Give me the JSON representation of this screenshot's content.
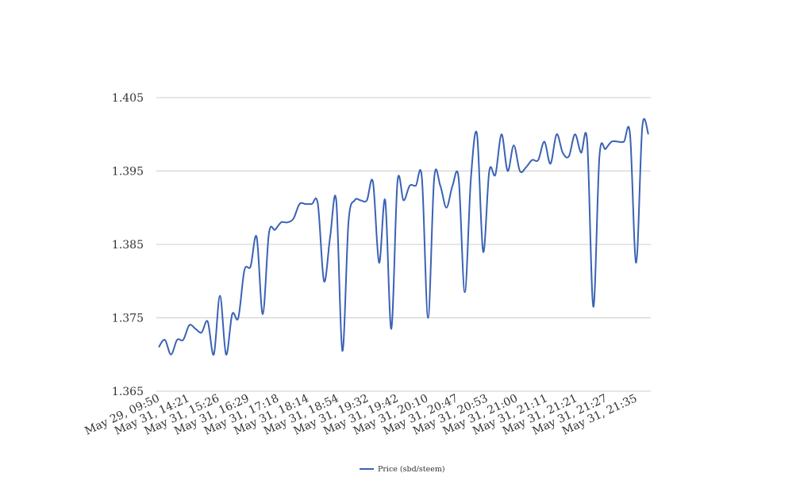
{
  "chart_data": {
    "type": "line",
    "title": "",
    "xlabel": "",
    "ylabel": "",
    "ylim": [
      1.365,
      1.405
    ],
    "yticks": [
      "1.405",
      "1.395",
      "1.385",
      "1.375",
      "1.365"
    ],
    "grid": "horizontal",
    "legend_position": "bottom",
    "x_tick_labels": [
      "May 29, 09:50",
      "May 31, 14:21",
      "May 31, 15:26",
      "May 31, 16:29",
      "May 31, 17:18",
      "May 31, 18:14",
      "May 31, 18:54",
      "May 31, 19:32",
      "May 31, 19:42",
      "May 31, 20:10",
      "May 31, 20:47",
      "May 31, 20:53",
      "May 31, 21:00",
      "May 31, 21:11",
      "May 31, 21:21",
      "May 31, 21:27",
      "May 31, 21:35"
    ],
    "series": [
      {
        "name": "Price (sbd/steem)",
        "color": "#3a62b5",
        "values": [
          1.371,
          1.372,
          1.37,
          1.372,
          1.372,
          1.374,
          1.3735,
          1.373,
          1.3745,
          1.37,
          1.378,
          1.37,
          1.3755,
          1.375,
          1.3815,
          1.382,
          1.386,
          1.3755,
          1.3865,
          1.387,
          1.388,
          1.388,
          1.3885,
          1.3905,
          1.3905,
          1.3905,
          1.3905,
          1.38,
          1.386,
          1.391,
          1.3705,
          1.388,
          1.391,
          1.391,
          1.391,
          1.3935,
          1.3825,
          1.391,
          1.3735,
          1.3935,
          1.391,
          1.393,
          1.393,
          1.394,
          1.375,
          1.394,
          1.393,
          1.39,
          1.393,
          1.394,
          1.3785,
          1.394,
          1.4,
          1.384,
          1.395,
          1.3945,
          1.4,
          1.395,
          1.3985,
          1.395,
          1.3955,
          1.3965,
          1.3965,
          1.399,
          1.396,
          1.4,
          1.3975,
          1.397,
          1.4,
          1.3975,
          1.399,
          1.3765,
          1.397,
          1.398,
          1.399,
          1.399,
          1.399,
          1.4,
          1.3825,
          1.401,
          1.4
        ]
      }
    ]
  }
}
